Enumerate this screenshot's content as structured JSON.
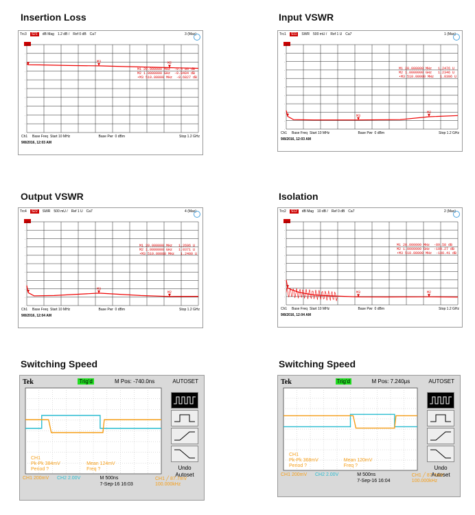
{
  "panels": [
    {
      "title": "Insertion Loss",
      "header": {
        "trace": "Trc3",
        "chip": "S21",
        "format": "dB Mag",
        "scale": "1.2 dB /",
        "ref": "Ref 0 dB",
        "cal": "Ca7",
        "count": "3 (Max)"
      },
      "markers": [
        "M1 20.000000 MHz  -0.5 86 dB",
        "M2 1.0000000 GHz  -0.8404 dB",
        "•M3 510.00000 MHz  -0.6827 dB"
      ],
      "footer": {
        "ch": "Ch1",
        "base": "Base Freq",
        "start": "Start 10 MHz",
        "pwr": "Base Pwr",
        "pwrval": "0 dBm",
        "stop": "Stop 1.2 GHz"
      },
      "date": "9/8/2016, 12:03 AM",
      "marker_labels": [
        "M3",
        "M2"
      ]
    },
    {
      "title": "Input VSWR",
      "header": {
        "trace": "Trc1",
        "chip": "S11",
        "format": "SWR",
        "scale": "500 mU /",
        "ref": "Ref 1 U",
        "cal": "Ca7",
        "count": "1 (Max)"
      },
      "markers": [
        "M1 20.000000 MHz   1.2476 U",
        "M2 1.0000000 GHz   1.2346 U",
        "•M3 510.00000 MHz   1.0396 U"
      ],
      "footer": {
        "ch": "Ch1",
        "base": "Base Freq",
        "start": "Start 10 MHz",
        "pwr": "Base Pwr",
        "pwrval": "0 dBm",
        "stop": "Stop 1.2 GHz"
      },
      "date": "9/8/2016, 12:03 AM",
      "marker_labels": [
        "M3",
        "M2"
      ]
    },
    {
      "title": "Output VSWR",
      "header": {
        "trace": "Trc4",
        "chip": "S22",
        "format": "SWR",
        "scale": "500 mU /",
        "ref": "Ref 1 U",
        "cal": "Ca7",
        "count": "4 (Max)"
      },
      "markers": [
        "M1 20.000000 MHz   1.2696 U",
        "M2 1.0000000 GHz   1.0371 U",
        "•M3 510.00000 MHz   1.2400 U"
      ],
      "footer": {
        "ch": "Ch1",
        "base": "Base Freq",
        "start": "Start 10 MHz",
        "pwr": "Base Pwr",
        "pwrval": "0 dBm",
        "stop": "Stop 1.2 GHz"
      },
      "date": "9/8/2016, 12:04 AM",
      "marker_labels": [
        "M3",
        "M2"
      ]
    },
    {
      "title": "Isolation",
      "header": {
        "trace": "Trc2",
        "chip": "S12",
        "format": "dB Mag",
        "scale": "10 dB /",
        "ref": "Ref 0 dB",
        "cal": "Ca7",
        "count": "2 (Max)"
      },
      "markers": [
        "M1 20.000000 MHz  -89.58 dB",
        "M2 1.0000000 GHz  -100.27 dB",
        "•M3 510.00000 MHz  -100.41 dB"
      ],
      "footer": {
        "ch": "Ch1",
        "base": "Base Freq",
        "start": "Start 10 MHz",
        "pwr": "Base Pwr",
        "pwrval": "0 dBm",
        "stop": "Stop 1.2 GHz"
      },
      "date": "9/8/2016, 12:04 AM",
      "marker_labels": [
        "M3",
        "M2"
      ]
    }
  ],
  "scopes": [
    {
      "title": "Switching Speed",
      "brand": "Tek",
      "trig": "Trig'd",
      "mpos": "M Pos: -740.0ns",
      "autoset": "AUTOSET",
      "undo": "Undo",
      "undo2": "Autoset",
      "ch1_meas": "CH1\nPk-Pk 384mV\nPeriod ?",
      "mean": "Mean 124mV\nFreq ?",
      "bottom": {
        "ch1": "CH1  200mV",
        "ch2": "CH2  2.00V",
        "timebase": "M 500ns",
        "date": "7-Sep-16 16:03",
        "trig": "CH1 ╱ 87.7mV",
        "freq": "100.000kHz"
      }
    },
    {
      "title": "Switching Speed",
      "brand": "Tek",
      "trig": "Trig'd",
      "mpos": "M Pos: 7.240μs",
      "autoset": "AUTOSET",
      "undo": "Undo",
      "undo2": "Autoset",
      "ch1_meas": "CH1\nPk-Pk 368mV\nPeriod ?",
      "mean": "Mean 120mV\nFreq ?",
      "bottom": {
        "ch1": "CH1  200mV",
        "ch2": "CH2  2.00V",
        "timebase": "M 500ns",
        "date": "7-Sep-16 16:04",
        "trig": "CH1 ╱ 87.7mV",
        "freq": "100.000kHz"
      }
    }
  ],
  "chart_data": [
    {
      "type": "line",
      "title": "Insertion Loss",
      "xlabel": "",
      "ylabel": "",
      "x_range_mhz": [
        10,
        1200
      ],
      "series": [
        {
          "name": "S21",
          "x": [
            10,
            20,
            100,
            300,
            510,
            700,
            1000,
            1200
          ],
          "y": [
            -0.5,
            -0.59,
            -0.6,
            -0.65,
            -0.68,
            -0.75,
            -0.84,
            -0.9
          ]
        }
      ],
      "markers": [
        {
          "x": 20,
          "y": -0.59
        },
        {
          "x": 1000,
          "y": -0.84
        },
        {
          "x": 510,
          "y": -0.68
        }
      ],
      "grid": true
    },
    {
      "type": "line",
      "title": "Input VSWR",
      "xlabel": "",
      "ylabel": "",
      "x_range_mhz": [
        10,
        1200
      ],
      "series": [
        {
          "name": "S11",
          "x": [
            10,
            20,
            60,
            200,
            510,
            800,
            1000,
            1200
          ],
          "y": [
            1.6,
            1.25,
            1.06,
            1.04,
            1.04,
            1.06,
            1.23,
            1.3
          ]
        }
      ],
      "markers": [
        {
          "x": 20,
          "y": 1.2476
        },
        {
          "x": 1000,
          "y": 1.2346
        },
        {
          "x": 510,
          "y": 1.0396
        }
      ],
      "grid": true
    },
    {
      "type": "line",
      "title": "Output VSWR",
      "xlabel": "",
      "ylabel": "",
      "x_range_mhz": [
        10,
        1200
      ],
      "series": [
        {
          "name": "S22",
          "x": [
            10,
            20,
            60,
            200,
            510,
            800,
            1000,
            1200
          ],
          "y": [
            1.7,
            1.27,
            1.08,
            1.1,
            1.24,
            1.1,
            1.04,
            1.05
          ]
        }
      ],
      "markers": [
        {
          "x": 20,
          "y": 1.2696
        },
        {
          "x": 1000,
          "y": 1.0371
        },
        {
          "x": 510,
          "y": 1.24
        }
      ],
      "grid": true
    },
    {
      "type": "line",
      "title": "Isolation",
      "xlabel": "",
      "ylabel": "",
      "x_range_mhz": [
        10,
        1200
      ],
      "series": [
        {
          "name": "S12",
          "x": [
            10,
            20,
            50,
            100,
            200,
            300,
            510,
            700,
            1000,
            1200
          ],
          "y": [
            -80,
            -89.6,
            -92,
            -95,
            -98,
            -99,
            -100.4,
            -100.5,
            -100.3,
            -100.6
          ]
        }
      ],
      "markers": [
        {
          "x": 20,
          "y": -89.58
        },
        {
          "x": 1000,
          "y": -100.27
        },
        {
          "x": 510,
          "y": -100.41
        }
      ],
      "grid": true
    }
  ]
}
